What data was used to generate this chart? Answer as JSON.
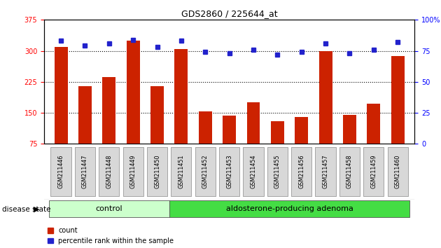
{
  "title": "GDS2860 / 225644_at",
  "samples": [
    "GSM211446",
    "GSM211447",
    "GSM211448",
    "GSM211449",
    "GSM211450",
    "GSM211451",
    "GSM211452",
    "GSM211453",
    "GSM211454",
    "GSM211455",
    "GSM211456",
    "GSM211457",
    "GSM211458",
    "GSM211459",
    "GSM211460"
  ],
  "counts": [
    310,
    215,
    237,
    325,
    215,
    305,
    153,
    143,
    175,
    130,
    140,
    300,
    145,
    172,
    288
  ],
  "percentiles": [
    83,
    79,
    81,
    84,
    78,
    83,
    74,
    73,
    76,
    72,
    74,
    81,
    73,
    76,
    82
  ],
  "groups": [
    "control",
    "control",
    "control",
    "control",
    "control",
    "adenoma",
    "adenoma",
    "adenoma",
    "adenoma",
    "adenoma",
    "adenoma",
    "adenoma",
    "adenoma",
    "adenoma",
    "adenoma"
  ],
  "ylim_left": [
    75,
    375
  ],
  "yticks_left": [
    75,
    150,
    225,
    300,
    375
  ],
  "ylim_right": [
    0,
    100
  ],
  "yticks_right": [
    0,
    25,
    50,
    75,
    100
  ],
  "bar_color": "#cc2200",
  "dot_color": "#2222cc",
  "control_color": "#ccffcc",
  "adenoma_color": "#44dd44",
  "control_label": "control",
  "adenoma_label": "aldosterone-producing adenoma",
  "disease_state_label": "disease state",
  "legend_count": "count",
  "legend_percentile": "percentile rank within the sample",
  "bg_color": "#ffffff",
  "tick_label_size": 7,
  "bar_width": 0.55,
  "n_control": 5
}
